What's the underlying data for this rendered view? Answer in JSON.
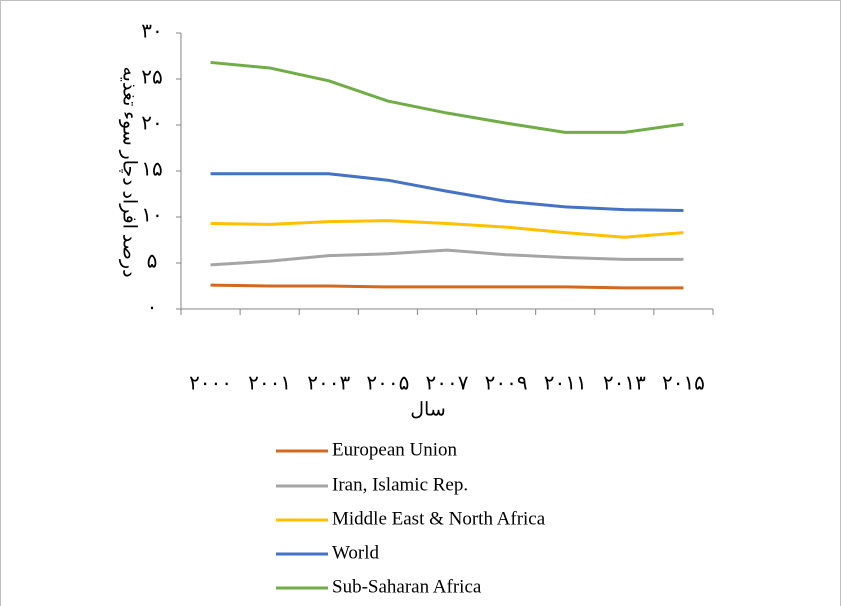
{
  "chart_data": {
    "type": "line",
    "y_label": "درصد افراد دچار سوء تغذیه",
    "x_label": "سال",
    "categories": [
      "۲۰۰۰",
      "۲۰۰۱",
      "۲۰۰۳",
      "۲۰۰۵",
      "۲۰۰۷",
      "۲۰۰۹",
      "۲۰۱۱",
      "۲۰۱۳",
      "۲۰۱۵"
    ],
    "series": [
      {
        "name": "European Union",
        "color": "#d2691e",
        "values": [
          2.6,
          2.5,
          2.5,
          2.4,
          2.4,
          2.4,
          2.4,
          2.3,
          2.3
        ]
      },
      {
        "name": "Iran, Islamic Rep.",
        "color": "#a5a5a5",
        "values": [
          4.8,
          5.2,
          5.8,
          6.0,
          6.4,
          5.9,
          5.6,
          5.4,
          5.4
        ]
      },
      {
        "name": "Middle East & North Africa",
        "color": "#ffc000",
        "values": [
          9.3,
          9.2,
          9.5,
          9.6,
          9.3,
          8.9,
          8.3,
          7.8,
          8.3
        ]
      },
      {
        "name": "World",
        "color": "#4472c4",
        "values": [
          14.7,
          14.7,
          14.7,
          14.0,
          12.8,
          11.7,
          11.1,
          10.8,
          10.7
        ]
      },
      {
        "name": "Sub-Saharan Africa",
        "color": "#70ad47",
        "values": [
          26.8,
          26.2,
          24.8,
          22.6,
          21.3,
          20.2,
          19.2,
          19.2,
          20.1
        ]
      }
    ],
    "ylim": [
      0,
      30
    ],
    "yticks": [
      {
        "value": 0,
        "label": "۰"
      },
      {
        "value": 5,
        "label": "۵"
      },
      {
        "value": 10,
        "label": "۱۰"
      },
      {
        "value": 15,
        "label": "۱۵"
      },
      {
        "value": 20,
        "label": "۲۰"
      },
      {
        "value": 25,
        "label": "۲۵"
      },
      {
        "value": 30,
        "label": "۳۰"
      }
    ],
    "grid": false,
    "legend": "bottom"
  }
}
